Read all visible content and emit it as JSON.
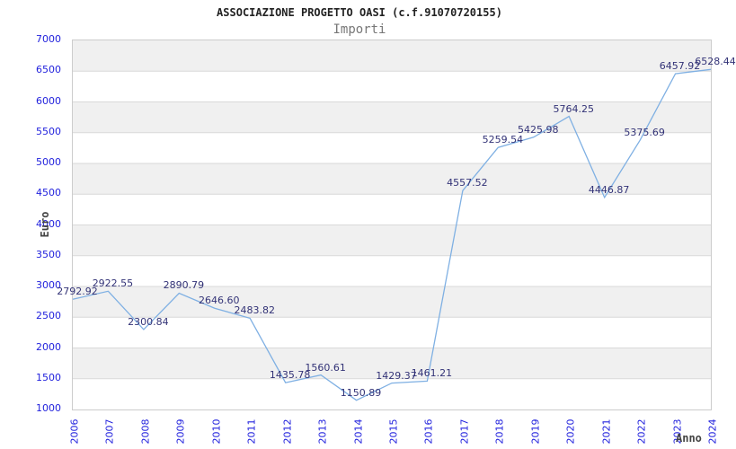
{
  "chart_data": {
    "type": "line",
    "title": "ASSOCIAZIONE PROGETTO OASI (c.f.91070720155)",
    "subtitle": "Importi",
    "xlabel": "Anno",
    "ylabel": "Euro",
    "categories": [
      "2006",
      "2007",
      "2008",
      "2009",
      "2010",
      "2011",
      "2012",
      "2013",
      "2014",
      "2015",
      "2016",
      "2017",
      "2018",
      "2019",
      "2020",
      "2021",
      "2022",
      "2023",
      "2024"
    ],
    "values": [
      2792.92,
      2922.55,
      2300.84,
      2890.79,
      2646.6,
      2483.82,
      1435.78,
      1560.61,
      1150.89,
      1429.37,
      1461.21,
      4557.52,
      5259.54,
      5425.98,
      5764.25,
      4446.87,
      5375.69,
      6457.92,
      6528.44
    ],
    "point_labels": [
      "2792.92",
      "2922.55",
      "2300.84",
      "2890.79",
      "2646.60",
      "2483.82",
      "1435.78",
      "1560.61",
      "1150.89",
      "1429.37",
      "1461.21",
      "4557.52",
      "5259.54",
      "5425.98",
      "5764.25",
      "4446.87",
      "5375.69",
      "6457.92",
      "6528.44"
    ],
    "ylim": [
      1000,
      7000
    ],
    "ytick_step": 500,
    "ytick_labels": [
      "1000",
      "1500",
      "2000",
      "2500",
      "3000",
      "3500",
      "4000",
      "4500",
      "5000",
      "5500",
      "6000",
      "6500",
      "7000"
    ],
    "grid": true,
    "legend": "none",
    "colors": {
      "line": "#7fb0e3",
      "point_label": "#333377",
      "tick_label": "#2222dd",
      "grid": "#d9d9d9",
      "band": "#f0f0f0",
      "band_alt": "#ffffff",
      "border": "#cccccc",
      "title": "#222222",
      "subtitle": "#777777",
      "axis_title": "#444444"
    }
  }
}
